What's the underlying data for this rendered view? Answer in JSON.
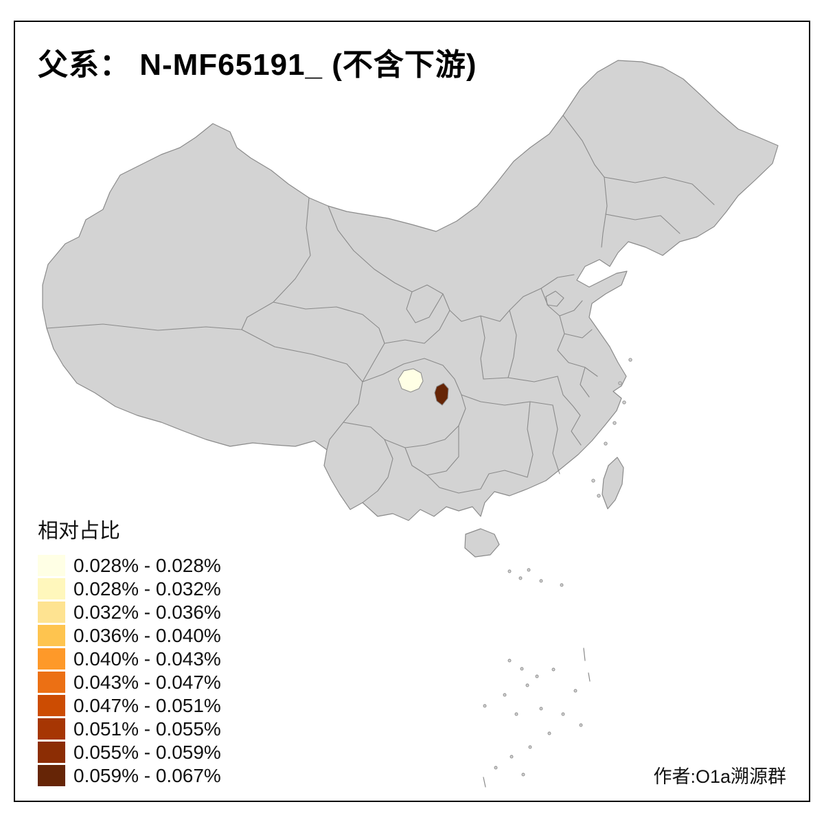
{
  "page": {
    "background": "#ffffff",
    "border_color": "#000000"
  },
  "title": {
    "text": "父系： N-MF65191_ (不含下游)"
  },
  "legend": {
    "title": "相对占比",
    "items": [
      {
        "color": "#FFFFE5",
        "label": "0.028% - 0.028%"
      },
      {
        "color": "#FFF7BC",
        "label": "0.028% - 0.032%"
      },
      {
        "color": "#FEE391",
        "label": "0.032% - 0.036%"
      },
      {
        "color": "#FEC44F",
        "label": "0.036% - 0.040%"
      },
      {
        "color": "#FE9929",
        "label": "0.040% - 0.043%"
      },
      {
        "color": "#EC7014",
        "label": "0.043% - 0.047%"
      },
      {
        "color": "#CC4C02",
        "label": "0.047% - 0.051%"
      },
      {
        "color": "#A63603",
        "label": "0.051% - 0.055%"
      },
      {
        "color": "#8C2D04",
        "label": "0.055% - 0.059%"
      },
      {
        "color": "#662506",
        "label": "0.059% - 0.067%"
      }
    ]
  },
  "map": {
    "base_fill": "#d3d3d3",
    "border_color": "#8a8a8a",
    "highlighted_regions": [
      {
        "name": "west-highlight-lowest-bin",
        "color": "#FFFFE5",
        "bin": "0.028% - 0.028%"
      },
      {
        "name": "east-highlight-highest-bin",
        "color": "#662506",
        "bin": "0.059% - 0.067%"
      }
    ]
  },
  "footer": {
    "author": "作者:O1a溯源群"
  }
}
